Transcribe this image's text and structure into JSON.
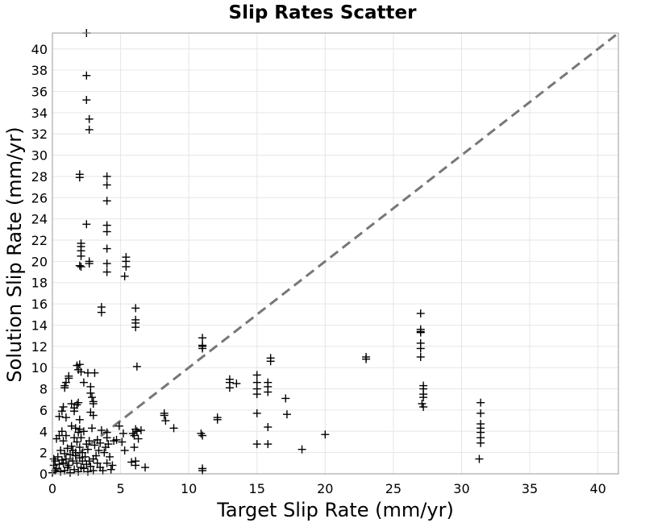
{
  "chart_data": {
    "type": "scatter",
    "title": "Slip Rates Scatter",
    "xlabel": "Target Slip Rate (mm/yr)",
    "ylabel": "Solution Slip Rate (mm/yr)",
    "xlim": [
      0,
      41.5
    ],
    "ylim": [
      0,
      41.5
    ],
    "xticks": [
      0,
      5,
      10,
      15,
      20,
      25,
      30,
      35,
      40
    ],
    "yticks": [
      0,
      2,
      4,
      6,
      8,
      10,
      12,
      14,
      16,
      18,
      20,
      22,
      24,
      26,
      28,
      30,
      32,
      34,
      36,
      38,
      40
    ],
    "grid": true,
    "marker": "+",
    "reference_line": "y = x (dashed)",
    "colors": {
      "marker": "#000000",
      "reference": "#777777",
      "grid": "#e6e6e6"
    },
    "points": [
      [
        2.5,
        41.5
      ],
      [
        2.5,
        37.5
      ],
      [
        2.5,
        35.2
      ],
      [
        2.7,
        33.4
      ],
      [
        2.7,
        32.4
      ],
      [
        2.0,
        28.2
      ],
      [
        2.0,
        27.9
      ],
      [
        4.0,
        28.0
      ],
      [
        4.0,
        27.2
      ],
      [
        4.0,
        25.7
      ],
      [
        2.5,
        23.5
      ],
      [
        4.0,
        23.4
      ],
      [
        4.0,
        22.8
      ],
      [
        2.1,
        21.7
      ],
      [
        2.1,
        21.4
      ],
      [
        2.1,
        21.0
      ],
      [
        2.1,
        20.5
      ],
      [
        4.0,
        21.2
      ],
      [
        5.4,
        20.4
      ],
      [
        5.4,
        20.0
      ],
      [
        2.7,
        20.0
      ],
      [
        2.7,
        19.8
      ],
      [
        2.0,
        19.6
      ],
      [
        2.1,
        19.5
      ],
      [
        4.0,
        19.8
      ],
      [
        4.0,
        19.0
      ],
      [
        5.4,
        19.5
      ],
      [
        5.3,
        18.6
      ],
      [
        3.6,
        15.7
      ],
      [
        3.6,
        15.2
      ],
      [
        6.1,
        15.6
      ],
      [
        6.1,
        14.5
      ],
      [
        6.1,
        14.2
      ],
      [
        6.1,
        13.8
      ],
      [
        11.0,
        12.8
      ],
      [
        11.0,
        12.1
      ],
      [
        11.0,
        12.0
      ],
      [
        11.0,
        11.8
      ],
      [
        27.0,
        15.1
      ],
      [
        27.0,
        13.6
      ],
      [
        27.0,
        13.4
      ],
      [
        27.0,
        13.3
      ],
      [
        27.0,
        12.3
      ],
      [
        27.0,
        11.8
      ],
      [
        27.0,
        11.0
      ],
      [
        16.0,
        10.9
      ],
      [
        16.0,
        10.6
      ],
      [
        23.0,
        11.0
      ],
      [
        23.0,
        10.8
      ],
      [
        6.2,
        10.1
      ],
      [
        1.8,
        10.2
      ],
      [
        2.0,
        10.3
      ],
      [
        1.9,
        9.8
      ],
      [
        2.1,
        9.6
      ],
      [
        2.6,
        9.5
      ],
      [
        3.1,
        9.5
      ],
      [
        1.2,
        9.2
      ],
      [
        1.2,
        9.0
      ],
      [
        1.0,
        8.6
      ],
      [
        0.9,
        8.3
      ],
      [
        0.9,
        8.1
      ],
      [
        2.3,
        8.6
      ],
      [
        2.8,
        8.2
      ],
      [
        13.0,
        8.9
      ],
      [
        13.0,
        8.6
      ],
      [
        13.0,
        8.1
      ],
      [
        13.5,
        8.5
      ],
      [
        15.0,
        9.3
      ],
      [
        15.0,
        8.6
      ],
      [
        15.0,
        8.0
      ],
      [
        15.0,
        7.5
      ],
      [
        15.8,
        8.6
      ],
      [
        15.8,
        8.2
      ],
      [
        15.8,
        7.7
      ],
      [
        17.1,
        7.1
      ],
      [
        17.2,
        5.6
      ],
      [
        27.2,
        8.3
      ],
      [
        27.2,
        8.0
      ],
      [
        27.2,
        7.5
      ],
      [
        27.2,
        7.2
      ],
      [
        27.1,
        6.6
      ],
      [
        27.2,
        6.3
      ],
      [
        2.8,
        7.6
      ],
      [
        2.9,
        7.2
      ],
      [
        3.0,
        6.8
      ],
      [
        3.0,
        6.6
      ],
      [
        2.8,
        5.8
      ],
      [
        3.0,
        5.5
      ],
      [
        0.8,
        6.3
      ],
      [
        1.4,
        6.6
      ],
      [
        1.6,
        6.2
      ],
      [
        1.8,
        6.5
      ],
      [
        1.9,
        6.7
      ],
      [
        1.6,
        5.9
      ],
      [
        0.7,
        5.9
      ],
      [
        0.5,
        5.4
      ],
      [
        1.0,
        5.3
      ],
      [
        2.0,
        5.1
      ],
      [
        8.2,
        5.7
      ],
      [
        8.2,
        5.5
      ],
      [
        8.3,
        5.0
      ],
      [
        8.9,
        4.3
      ],
      [
        12.1,
        5.3
      ],
      [
        12.1,
        5.1
      ],
      [
        15.0,
        5.7
      ],
      [
        15.0,
        2.8
      ],
      [
        15.8,
        4.4
      ],
      [
        15.8,
        2.8
      ],
      [
        18.3,
        2.3
      ],
      [
        20.0,
        3.7
      ],
      [
        31.4,
        6.7
      ],
      [
        31.4,
        5.7
      ],
      [
        31.4,
        4.7
      ],
      [
        31.4,
        4.3
      ],
      [
        31.4,
        3.9
      ],
      [
        31.4,
        3.4
      ],
      [
        31.4,
        2.9
      ],
      [
        31.3,
        1.4
      ],
      [
        10.9,
        3.8
      ],
      [
        11.0,
        3.6
      ],
      [
        11.0,
        0.5
      ],
      [
        11.0,
        0.3
      ],
      [
        6.1,
        4.2
      ],
      [
        6.2,
        4.0
      ],
      [
        5.9,
        3.8
      ],
      [
        6.5,
        4.1
      ],
      [
        6.0,
        3.6
      ],
      [
        6.3,
        3.3
      ],
      [
        6.0,
        2.5
      ],
      [
        5.8,
        1.1
      ],
      [
        6.1,
        1.2
      ],
      [
        6.1,
        0.8
      ],
      [
        6.8,
        0.6
      ],
      [
        4.9,
        4.5
      ],
      [
        5.2,
        3.8
      ],
      [
        4.7,
        3.2
      ],
      [
        5.1,
        3.0
      ],
      [
        5.3,
        2.2
      ],
      [
        4.5,
        3.1
      ],
      [
        4.0,
        3.9
      ],
      [
        4.0,
        3.4
      ],
      [
        4.1,
        2.8
      ],
      [
        3.9,
        2.5
      ],
      [
        3.8,
        2.0
      ],
      [
        4.2,
        1.6
      ],
      [
        4.0,
        1.0
      ],
      [
        4.4,
        0.8
      ],
      [
        3.7,
        0.3
      ],
      [
        4.3,
        0.4
      ],
      [
        3.3,
        3.2
      ],
      [
        3.5,
        2.9
      ],
      [
        3.1,
        2.7
      ],
      [
        3.4,
        2.2
      ],
      [
        3.2,
        1.7
      ],
      [
        3.0,
        1.4
      ],
      [
        3.3,
        1.0
      ],
      [
        3.5,
        0.6
      ],
      [
        3.0,
        0.3
      ],
      [
        2.7,
        3.1
      ],
      [
        2.5,
        2.8
      ],
      [
        2.6,
        2.3
      ],
      [
        2.2,
        2.0
      ],
      [
        2.4,
        1.6
      ],
      [
        2.7,
        1.2
      ],
      [
        2.5,
        0.9
      ],
      [
        2.3,
        0.5
      ],
      [
        2.6,
        0.2
      ],
      [
        2.0,
        4.2
      ],
      [
        1.9,
        3.9
      ],
      [
        2.1,
        3.4
      ],
      [
        1.8,
        3.0
      ],
      [
        2.0,
        2.5
      ],
      [
        1.7,
        2.0
      ],
      [
        2.0,
        1.5
      ],
      [
        1.8,
        1.0
      ],
      [
        2.1,
        0.6
      ],
      [
        1.9,
        0.2
      ],
      [
        1.6,
        3.4
      ],
      [
        1.4,
        2.6
      ],
      [
        1.5,
        2.2
      ],
      [
        1.3,
        1.8
      ],
      [
        1.5,
        1.2
      ],
      [
        1.2,
        0.8
      ],
      [
        1.6,
        0.4
      ],
      [
        1.3,
        0.1
      ],
      [
        1.0,
        3.6
      ],
      [
        0.8,
        3.1
      ],
      [
        1.1,
        2.4
      ],
      [
        0.9,
        1.9
      ],
      [
        1.0,
        1.4
      ],
      [
        0.8,
        1.0
      ],
      [
        1.1,
        0.6
      ],
      [
        0.9,
        0.3
      ],
      [
        0.5,
        3.6
      ],
      [
        0.3,
        3.3
      ],
      [
        0.6,
        2.2
      ],
      [
        0.4,
        1.6
      ],
      [
        0.2,
        1.2
      ],
      [
        0.5,
        0.9
      ],
      [
        0.3,
        0.5
      ],
      [
        0.6,
        0.2
      ],
      [
        0.1,
        1.4
      ],
      [
        0.1,
        0.8
      ],
      [
        0.2,
        0.3
      ],
      [
        0.0,
        0.1
      ],
      [
        0.7,
        1.3
      ],
      [
        1.7,
        1.7
      ],
      [
        2.2,
        1.2
      ],
      [
        2.8,
        0.7
      ],
      [
        1.4,
        4.5
      ],
      [
        1.7,
        4.3
      ],
      [
        2.3,
        4.0
      ],
      [
        0.7,
        4.0
      ],
      [
        2.9,
        4.3
      ],
      [
        3.6,
        4.1
      ]
    ]
  }
}
